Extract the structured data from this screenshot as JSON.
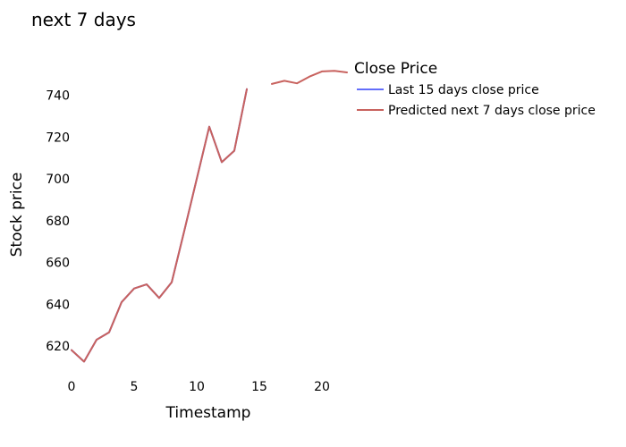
{
  "chart_data": {
    "type": "line",
    "title": "next 7 days",
    "xlabel": "Timestamp",
    "ylabel": "Stock price",
    "xlim": [
      0,
      22
    ],
    "ylim": [
      605,
      760
    ],
    "xticks": [
      0,
      5,
      10,
      15,
      20
    ],
    "yticks": [
      620,
      640,
      660,
      680,
      700,
      720,
      740
    ],
    "grid": false,
    "legend": {
      "title": "Close Price",
      "position": "top-right"
    },
    "series": [
      {
        "name": "Last 15 days close price",
        "color": "#636efa",
        "x": [
          0,
          1,
          2,
          3,
          4,
          5,
          6,
          7,
          8,
          9,
          10,
          11,
          12,
          13,
          14
        ],
        "y": [
          618,
          612.5,
          623,
          626.5,
          641,
          647.5,
          649.5,
          643,
          650.5,
          675,
          700,
          725,
          708,
          713.5,
          743
        ]
      },
      {
        "name": "Predicted next 7 days close price",
        "color": "#c8625e",
        "x": [
          0,
          1,
          2,
          3,
          4,
          5,
          6,
          7,
          8,
          9,
          10,
          11,
          12,
          13,
          14,
          15,
          16,
          17,
          18,
          19,
          20,
          21,
          22
        ],
        "y": [
          618,
          612.5,
          623,
          626.5,
          641,
          647.5,
          649.5,
          643,
          650.5,
          675,
          700,
          725,
          708,
          713.5,
          743,
          null,
          745.5,
          747,
          745.8,
          749,
          751.5,
          751.8,
          751
        ]
      }
    ]
  }
}
